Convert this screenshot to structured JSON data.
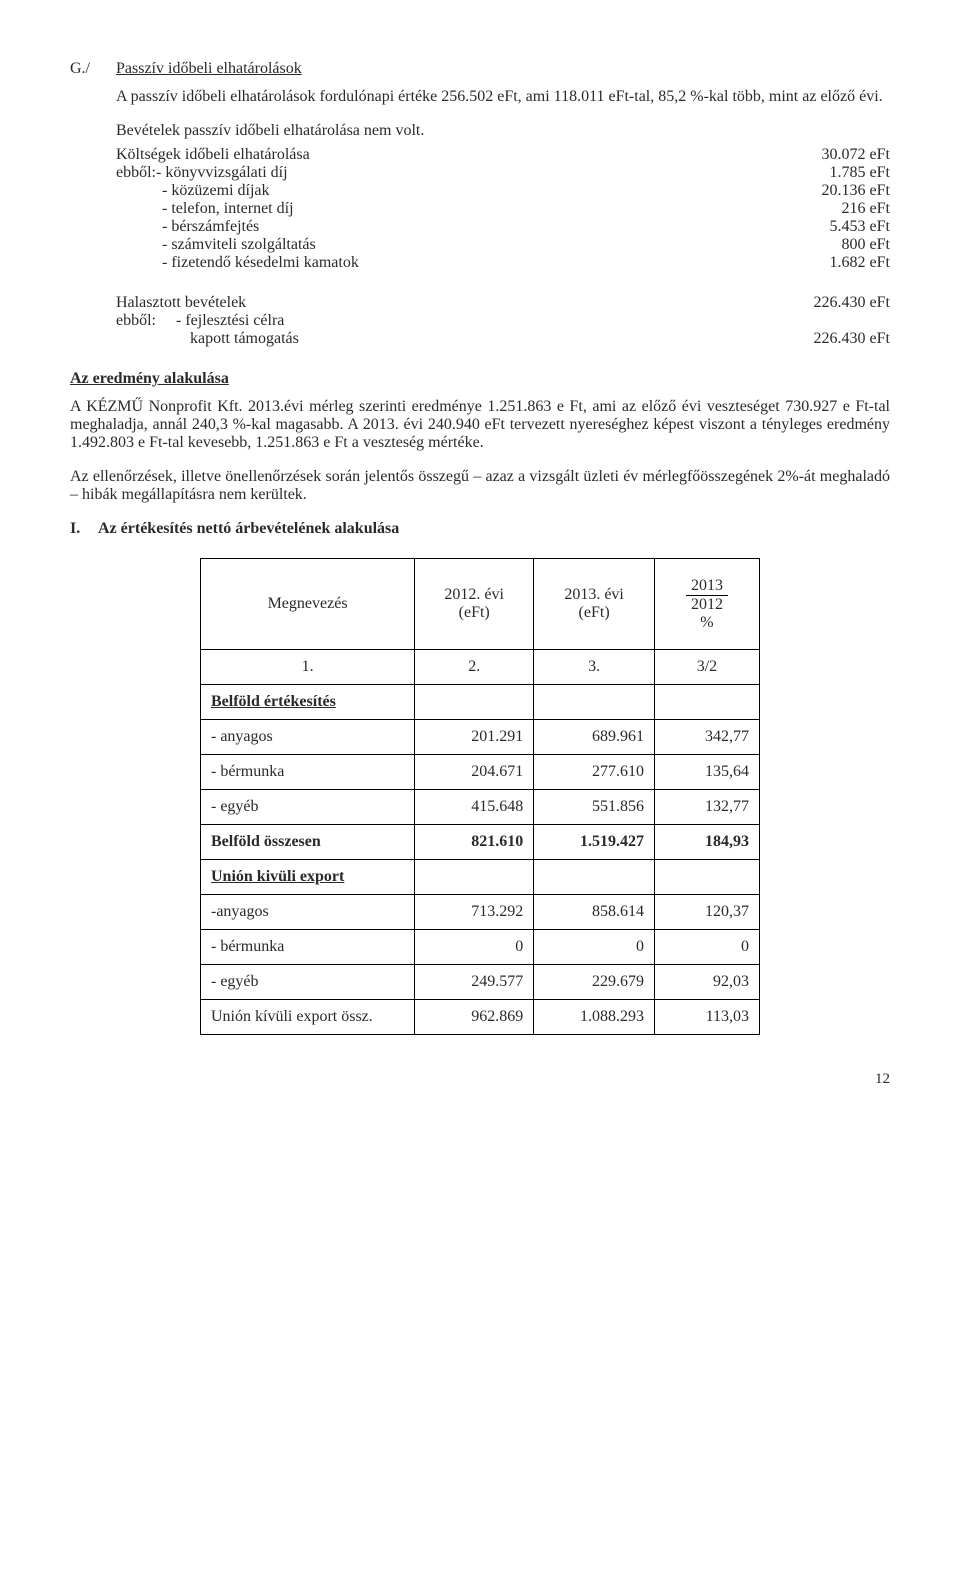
{
  "heading": {
    "prefix": "G./",
    "title": "Passzív időbeli elhatárolások"
  },
  "para1": "A passzív időbeli elhatárolások fordulónapi értéke 256.502 eFt, ami 118.011 eFt-tal, 85,2 %-kal több, mint az előző évi.",
  "para2": "Bevételek passzív időbeli elhatárolása nem volt.",
  "cost_block": {
    "l1": {
      "label": "Költségek időbeli elhatárolása",
      "val": "30.072 eFt"
    },
    "l2": {
      "label": "ebből:- könyvvizsgálati díj",
      "val": "1.785 eFt"
    },
    "l3": {
      "label": "- közüzemi díjak",
      "val": "20.136 eFt"
    },
    "l4": {
      "label": "- telefon, internet díj",
      "val": "216 eFt"
    },
    "l5": {
      "label": "- bérszámfejtés",
      "val": "5.453 eFt"
    },
    "l6": {
      "label": "- számviteli szolgáltatás",
      "val": "800 eFt"
    },
    "l7": {
      "label": "- fizetendő késedelmi kamatok",
      "val": "1.682 eFt"
    }
  },
  "deferred": {
    "l1": {
      "label": "Halasztott bevételek",
      "val": "226.430 eFt"
    },
    "l2a": "ebből:",
    "l2b": "- fejlesztési célra",
    "l3": {
      "label": "kapott támogatás",
      "val": "226.430 eFt"
    }
  },
  "result_heading": "Az eredmény alakulása",
  "para3": "A KÉZMŰ Nonprofit Kft. 2013.évi mérleg szerinti eredménye 1.251.863 e Ft, ami az előző évi veszteséget 730.927 e Ft-tal meghaladja, annál 240,3 %-kal magasabb. A 2013. évi 240.940 eFt tervezett nyereséghez képest viszont a tényleges eredmény 1.492.803 e Ft-tal kevesebb, 1.251.863 e Ft a veszteség mértéke.",
  "para4": "Az ellenőrzések, illetve önellenőrzések során jelentős összegű – azaz a vizsgált üzleti év mérlegfőösszegének 2%-át meghaladó – hibák megállapításra nem kerültek.",
  "section_I": {
    "num": "I.",
    "title": "Az értékesítés  nettó árbevételének alakulása"
  },
  "table": {
    "header": {
      "c1": "Megnevezés",
      "c2a": "2012. évi",
      "c2b": "(eFt)",
      "c3a": "2013. évi",
      "c3b": "(eFt)",
      "c4a": "2013",
      "c4b": "2012",
      "c4c": "%"
    },
    "numrow": {
      "c1": "1.",
      "c2": "2.",
      "c3": "3.",
      "c4": "3/2"
    },
    "rows": [
      {
        "c1": "Belföld értékesítés",
        "c2": "",
        "c3": "",
        "c4": "",
        "ul": true,
        "bold": true
      },
      {
        "c1": "- anyagos",
        "c2": "201.291",
        "c3": "689.961",
        "c4": "342,77"
      },
      {
        "c1": "- bérmunka",
        "c2": "204.671",
        "c3": "277.610",
        "c4": "135,64"
      },
      {
        "c1": "- egyéb",
        "c2": "415.648",
        "c3": "551.856",
        "c4": "132,77"
      },
      {
        "c1": "Belföld összesen",
        "c2": "821.610",
        "c3": "1.519.427",
        "c4": "184,93",
        "bold": true
      },
      {
        "c1": "Unión kivüli export",
        "c2": "",
        "c3": "",
        "c4": "",
        "ul": true,
        "bold": true
      },
      {
        "c1": "-anyagos",
        "c2": "713.292",
        "c3": "858.614",
        "c4": "120,37"
      },
      {
        "c1": "- bérmunka",
        "c2": "0",
        "c3": "0",
        "c4": "0"
      },
      {
        "c1": "- egyéb",
        "c2": "249.577",
        "c3": "229.679",
        "c4": "92,03"
      },
      {
        "c1": "Unión kívüli export össz.",
        "c2": "962.869",
        "c3": "1.088.293",
        "c4": "113,03"
      }
    ]
  },
  "page_number": "12"
}
